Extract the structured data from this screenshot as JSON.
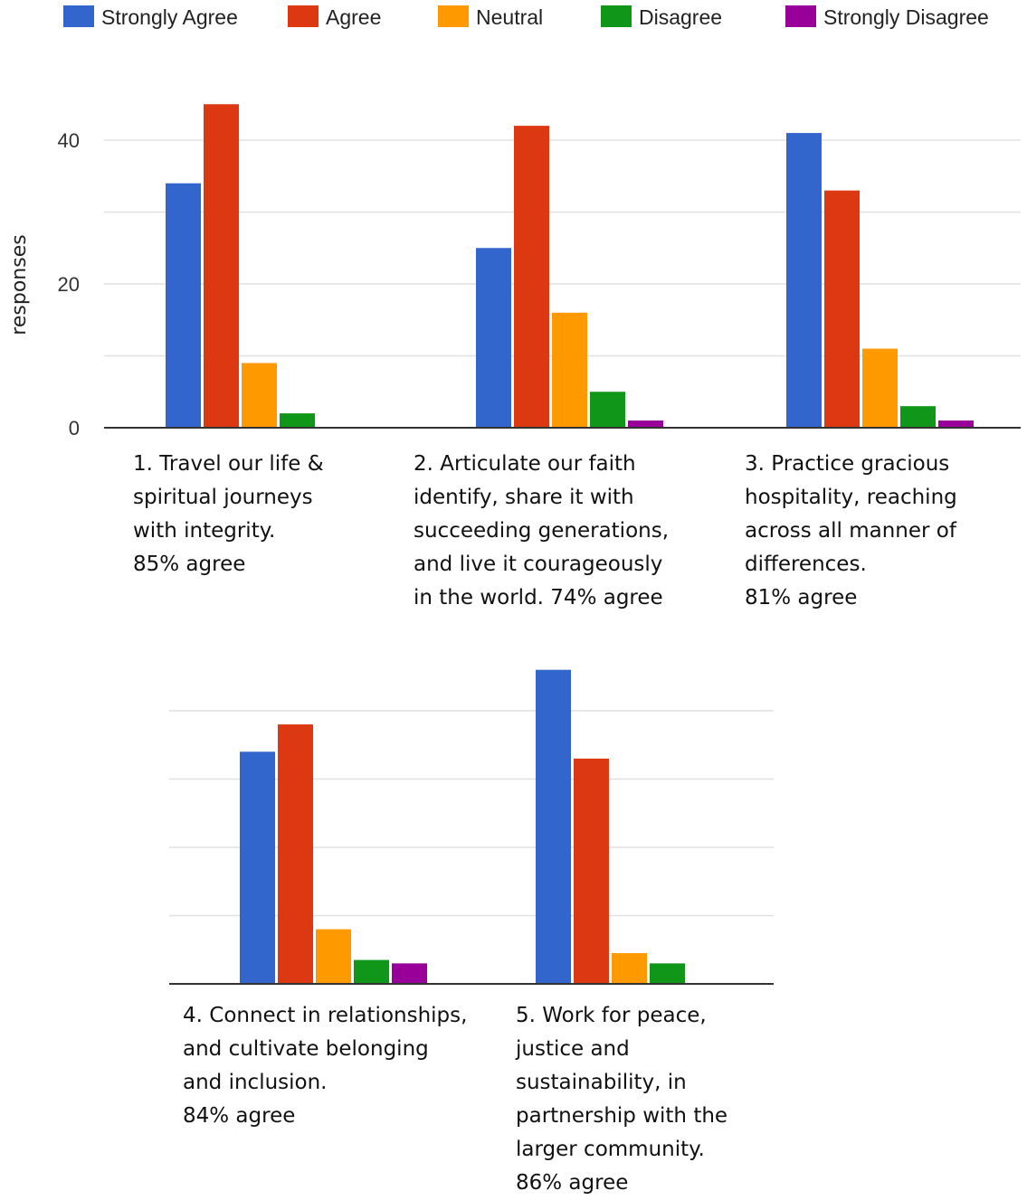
{
  "colors": {
    "Strongly Agree": "#3366cc",
    "Agree": "#dc3912",
    "Neutral": "#ff9900",
    "Disagree": "#109618",
    "Strongly Disagree": "#990099",
    "grid": "#e0e0e0",
    "axis": "#333333"
  },
  "chart_data": {
    "type": "bar",
    "ylabel": "responses",
    "ylim": [
      0,
      40
    ],
    "yticks": [
      0,
      20,
      40
    ],
    "grid": true,
    "legend_position": "top",
    "series_names": [
      "Strongly Agree",
      "Agree",
      "Neutral",
      "Disagree",
      "Strongly Disagree"
    ],
    "panels": [
      {
        "name": "top",
        "show_yaxis": true,
        "categories": [
          {
            "label": "1. Travel our life &\nspiritual journeys\nwith integrity.",
            "pct": "85% agree",
            "values": [
              34,
              45,
              9,
              2,
              0
            ]
          },
          {
            "label": "2. Articulate our faith\nidentify, share it with\nsucceeding generations,\nand live it courageously\nin the world.",
            "pct": "74% agree",
            "values": [
              25,
              42,
              16,
              5,
              1
            ]
          },
          {
            "label": "3. Practice gracious\nhospitality, reaching\nacross all manner of\ndifferences.",
            "pct": "81% agree",
            "values": [
              41,
              33,
              11,
              3,
              1
            ]
          }
        ]
      },
      {
        "name": "bottom",
        "show_yaxis": false,
        "categories": [
          {
            "label": "4. Connect in relationships,\nand cultivate belonging\nand inclusion.",
            "pct": "84% agree",
            "values": [
              34,
              38,
              8,
              3.5,
              3
            ]
          },
          {
            "label": "5. Work for peace,\njustice and\nsustainability, in\npartnership with the\nlarger community.",
            "pct": "86% agree",
            "values": [
              46,
              33,
              4.5,
              3,
              0
            ]
          }
        ]
      }
    ]
  }
}
